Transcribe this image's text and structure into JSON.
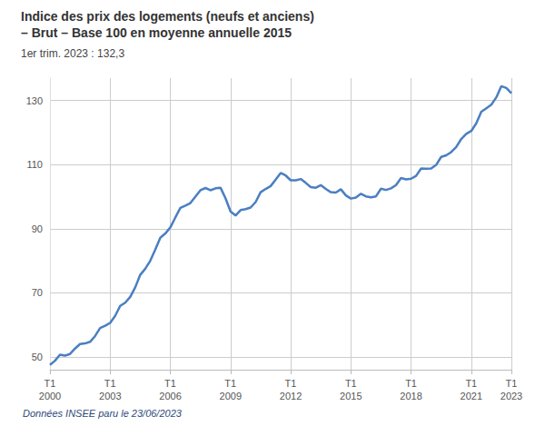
{
  "chart_data": {
    "type": "line",
    "title": "Indice des prix des logements (neufs et anciens) – Brut – Base 100 en moyenne annuelle 2015",
    "subtitle": "1er trim. 2023 : 132,3",
    "annotations": [
      "Données INSEE paru le 23/06/2023"
    ],
    "categories": [
      "T1\n2000",
      null,
      null,
      null,
      null,
      null,
      null,
      null,
      null,
      null,
      null,
      null,
      "T1\n2003",
      null,
      null,
      null,
      null,
      null,
      null,
      null,
      null,
      null,
      null,
      null,
      "T1\n2006",
      null,
      null,
      null,
      null,
      null,
      null,
      null,
      null,
      null,
      null,
      null,
      "T1\n2009",
      null,
      null,
      null,
      null,
      null,
      null,
      null,
      null,
      null,
      null,
      null,
      "T1\n2012",
      null,
      null,
      null,
      null,
      null,
      null,
      null,
      null,
      null,
      null,
      null,
      "T1\n2015",
      null,
      null,
      null,
      null,
      null,
      null,
      null,
      null,
      null,
      null,
      null,
      "T1\n2018",
      null,
      null,
      null,
      null,
      null,
      null,
      null,
      null,
      null,
      null,
      null,
      "T1\n2021",
      null,
      null,
      null,
      null,
      null,
      null,
      null,
      "T1\n2023"
    ],
    "values": [
      47.5,
      48.8,
      50.7,
      50.4,
      50.9,
      52.6,
      54.0,
      54.2,
      54.7,
      56.5,
      59.0,
      59.7,
      60.6,
      62.8,
      65.9,
      66.9,
      68.7,
      71.7,
      75.6,
      77.5,
      80.0,
      83.5,
      87.2,
      88.5,
      90.4,
      93.5,
      96.5,
      97.2,
      98.0,
      100.0,
      102.0,
      102.7,
      102.0,
      102.6,
      102.8,
      99.5,
      95.4,
      94.1,
      95.8,
      96.1,
      96.6,
      98.3,
      101.4,
      102.4,
      103.3,
      105.3,
      107.4,
      106.6,
      105.1,
      105.1,
      105.5,
      104.3,
      103.0,
      102.8,
      103.6,
      102.4,
      101.4,
      101.3,
      102.3,
      100.4,
      99.4,
      99.7,
      100.9,
      100.1,
      99.8,
      100.1,
      102.5,
      102.1,
      102.6,
      103.6,
      105.8,
      105.4,
      105.6,
      106.5,
      108.8,
      108.7,
      108.8,
      109.9,
      112.4,
      112.9,
      113.9,
      115.5,
      118.0,
      119.6,
      120.5,
      122.9,
      126.5,
      127.6,
      128.7,
      131.0,
      134.5,
      133.9,
      132.3
    ],
    "color": "#4a7fc1",
    "ylim": [
      46,
      137
    ],
    "yticks": [
      50,
      70,
      90,
      110,
      130
    ],
    "grid": true
  }
}
